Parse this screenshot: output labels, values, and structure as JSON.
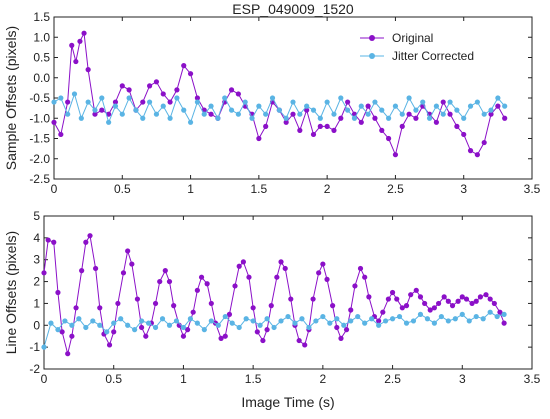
{
  "chart_data": [
    {
      "type": "line",
      "title": "ESP_049009_1520",
      "xlabel": "",
      "ylabel": "Sample Offsets (pixels)",
      "xlim": [
        0,
        3.5
      ],
      "ylim": [
        -2.5,
        1.5
      ],
      "xticks": [
        "0",
        "0.5",
        "1",
        "1.5",
        "2",
        "2.5",
        "3",
        "3.5"
      ],
      "yticks": [
        "-2.5",
        "-2.0",
        "-1.5",
        "-1.0",
        "-0.5",
        "0.0",
        "0.5",
        "1.0",
        "1.5"
      ],
      "legend": "top-right",
      "series": [
        {
          "name": "Original",
          "color": "#8b10c8",
          "x": [
            0.0,
            0.05,
            0.1,
            0.13,
            0.16,
            0.19,
            0.22,
            0.25,
            0.3,
            0.35,
            0.4,
            0.45,
            0.5,
            0.55,
            0.6,
            0.65,
            0.7,
            0.75,
            0.8,
            0.85,
            0.9,
            0.95,
            1.0,
            1.05,
            1.1,
            1.15,
            1.2,
            1.25,
            1.3,
            1.35,
            1.4,
            1.45,
            1.5,
            1.55,
            1.6,
            1.65,
            1.7,
            1.75,
            1.8,
            1.85,
            1.9,
            1.95,
            2.0,
            2.05,
            2.1,
            2.15,
            2.2,
            2.25,
            2.3,
            2.35,
            2.4,
            2.45,
            2.5,
            2.55,
            2.6,
            2.65,
            2.7,
            2.75,
            2.8,
            2.85,
            2.9,
            2.95,
            3.0,
            3.05,
            3.1,
            3.15,
            3.2,
            3.25,
            3.3
          ],
          "y": [
            -1.1,
            -1.4,
            -0.6,
            0.8,
            0.4,
            0.9,
            1.1,
            0.2,
            -0.9,
            -0.8,
            -0.9,
            -0.6,
            -0.2,
            -0.3,
            -0.8,
            -0.6,
            -0.2,
            -0.1,
            -0.4,
            -0.6,
            -0.3,
            0.3,
            0.1,
            -0.5,
            -0.8,
            -0.9,
            -1.0,
            -0.6,
            -0.3,
            -0.4,
            -0.7,
            -0.9,
            -1.5,
            -1.2,
            -0.6,
            -0.8,
            -1.1,
            -0.9,
            -1.3,
            -0.8,
            -1.4,
            -1.2,
            -1.2,
            -1.3,
            -1.0,
            -0.6,
            -0.9,
            -1.1,
            -0.7,
            -1.0,
            -1.3,
            -1.5,
            -1.9,
            -1.2,
            -0.9,
            -1.0,
            -0.7,
            -0.9,
            -1.1,
            -0.6,
            -0.9,
            -1.2,
            -1.4,
            -1.8,
            -1.9,
            -1.6,
            -0.9,
            -0.7,
            -1.0
          ]
        },
        {
          "name": "Jitter Corrected",
          "color": "#5ab4e4",
          "x": [
            0.0,
            0.05,
            0.1,
            0.15,
            0.2,
            0.25,
            0.3,
            0.35,
            0.4,
            0.45,
            0.5,
            0.55,
            0.6,
            0.65,
            0.7,
            0.75,
            0.8,
            0.85,
            0.9,
            0.95,
            1.0,
            1.05,
            1.1,
            1.15,
            1.2,
            1.25,
            1.3,
            1.35,
            1.4,
            1.45,
            1.5,
            1.55,
            1.6,
            1.65,
            1.7,
            1.75,
            1.8,
            1.85,
            1.9,
            1.95,
            2.0,
            2.05,
            2.1,
            2.15,
            2.2,
            2.25,
            2.3,
            2.35,
            2.4,
            2.45,
            2.5,
            2.55,
            2.6,
            2.65,
            2.7,
            2.75,
            2.8,
            2.85,
            2.9,
            2.95,
            3.0,
            3.05,
            3.1,
            3.15,
            3.2,
            3.25,
            3.3
          ],
          "y": [
            -0.6,
            -0.5,
            -0.9,
            -0.4,
            -1.0,
            -0.6,
            -0.8,
            -0.5,
            -1.1,
            -0.7,
            -0.9,
            -0.5,
            -0.8,
            -1.0,
            -0.6,
            -0.9,
            -0.7,
            -1.0,
            -0.5,
            -0.8,
            -1.1,
            -0.6,
            -0.9,
            -0.7,
            -1.0,
            -0.5,
            -0.8,
            -0.9,
            -0.6,
            -1.0,
            -0.7,
            -0.9,
            -0.5,
            -0.8,
            -1.0,
            -0.6,
            -0.9,
            -0.7,
            -0.8,
            -1.0,
            -0.6,
            -0.9,
            -0.5,
            -0.8,
            -1.0,
            -0.7,
            -0.9,
            -0.6,
            -0.8,
            -1.0,
            -0.7,
            -0.9,
            -0.5,
            -0.8,
            -0.6,
            -1.0,
            -0.7,
            -0.9,
            -0.6,
            -0.8,
            -1.0,
            -0.7,
            -0.6,
            -0.9,
            -0.8,
            -0.5,
            -0.7
          ]
        }
      ]
    },
    {
      "type": "line",
      "title": "",
      "xlabel": "Image Time (s)",
      "ylabel": "Line Offsets (pixels)",
      "xlim": [
        0,
        3.5
      ],
      "ylim": [
        -2,
        5
      ],
      "xticks": [
        "0",
        "0.5",
        "1",
        "1.5",
        "2",
        "2.5",
        "3",
        "3.5"
      ],
      "yticks": [
        "-2",
        "-1",
        "0",
        "1",
        "2",
        "3",
        "4",
        "5"
      ],
      "series": [
        {
          "name": "Original",
          "color": "#8b10c8",
          "x": [
            0.0,
            0.03,
            0.07,
            0.1,
            0.13,
            0.17,
            0.2,
            0.23,
            0.27,
            0.3,
            0.33,
            0.37,
            0.4,
            0.43,
            0.47,
            0.5,
            0.53,
            0.57,
            0.6,
            0.63,
            0.67,
            0.7,
            0.73,
            0.77,
            0.8,
            0.83,
            0.87,
            0.9,
            0.93,
            0.97,
            1.0,
            1.03,
            1.07,
            1.1,
            1.13,
            1.17,
            1.2,
            1.23,
            1.27,
            1.3,
            1.33,
            1.37,
            1.4,
            1.43,
            1.47,
            1.5,
            1.53,
            1.57,
            1.6,
            1.63,
            1.67,
            1.7,
            1.73,
            1.77,
            1.8,
            1.83,
            1.87,
            1.9,
            1.93,
            1.97,
            2.0,
            2.03,
            2.07,
            2.1,
            2.13,
            2.17,
            2.2,
            2.23,
            2.27,
            2.3,
            2.33,
            2.37,
            2.4,
            2.43,
            2.47,
            2.5,
            2.53,
            2.57,
            2.6,
            2.63,
            2.67,
            2.7,
            2.73,
            2.77,
            2.8,
            2.83,
            2.87,
            2.9,
            2.93,
            2.97,
            3.0,
            3.03,
            3.07,
            3.1,
            3.13,
            3.17,
            3.2,
            3.23,
            3.27,
            3.3
          ],
          "y": [
            2.4,
            3.9,
            3.8,
            1.5,
            -0.3,
            -1.3,
            -0.5,
            0.8,
            2.5,
            3.8,
            4.1,
            2.6,
            0.8,
            -0.4,
            -0.9,
            -0.3,
            1.0,
            2.4,
            3.4,
            2.8,
            1.2,
            -0.1,
            -0.5,
            0.1,
            1.0,
            2.0,
            2.5,
            2.0,
            0.9,
            0.0,
            -0.5,
            -0.2,
            0.6,
            1.6,
            2.2,
            1.9,
            1.0,
            0.1,
            -0.6,
            -0.5,
            0.5,
            1.8,
            2.7,
            2.9,
            2.2,
            0.8,
            -0.3,
            -0.7,
            -0.2,
            0.9,
            2.2,
            2.9,
            2.6,
            1.2,
            0.0,
            -0.7,
            -0.9,
            -0.2,
            1.2,
            2.4,
            2.8,
            2.1,
            0.9,
            -0.1,
            -0.6,
            -0.2,
            0.7,
            1.8,
            2.6,
            2.2,
            1.3,
            0.4,
            0.2,
            0.6,
            1.2,
            1.5,
            1.2,
            0.8,
            0.9,
            1.4,
            1.6,
            1.3,
            1.0,
            0.7,
            0.8,
            1.0,
            1.3,
            1.1,
            0.9,
            1.1,
            1.3,
            1.2,
            1.0,
            1.1,
            1.3,
            1.4,
            1.2,
            1.0,
            0.6,
            0.1
          ]
        },
        {
          "name": "Jitter Corrected",
          "color": "#5ab4e4",
          "x": [
            0.0,
            0.05,
            0.1,
            0.15,
            0.2,
            0.25,
            0.3,
            0.35,
            0.4,
            0.45,
            0.5,
            0.55,
            0.6,
            0.65,
            0.7,
            0.75,
            0.8,
            0.85,
            0.9,
            0.95,
            1.0,
            1.05,
            1.1,
            1.15,
            1.2,
            1.25,
            1.3,
            1.35,
            1.4,
            1.45,
            1.5,
            1.55,
            1.6,
            1.65,
            1.7,
            1.75,
            1.8,
            1.85,
            1.9,
            1.95,
            2.0,
            2.05,
            2.1,
            2.15,
            2.2,
            2.25,
            2.3,
            2.35,
            2.4,
            2.45,
            2.5,
            2.55,
            2.6,
            2.65,
            2.7,
            2.75,
            2.8,
            2.85,
            2.9,
            2.95,
            3.0,
            3.05,
            3.1,
            3.15,
            3.2,
            3.25,
            3.3
          ],
          "y": [
            -1.0,
            0.1,
            -0.2,
            0.2,
            0.0,
            0.3,
            -0.1,
            0.2,
            0.0,
            -0.3,
            0.1,
            0.3,
            0.0,
            -0.2,
            0.2,
            0.1,
            -0.1,
            0.3,
            0.0,
            0.2,
            -0.1,
            0.3,
            0.1,
            -0.2,
            0.2,
            0.0,
            0.4,
            0.1,
            -0.1,
            0.3,
            0.2,
            0.0,
            0.3,
            -0.1,
            0.2,
            0.4,
            0.1,
            0.3,
            -0.1,
            0.2,
            0.4,
            0.1,
            0.3,
            0.0,
            0.2,
            0.4,
            0.1,
            0.3,
            0.0,
            0.2,
            0.3,
            0.4,
            0.1,
            0.2,
            0.5,
            0.3,
            0.1,
            0.4,
            0.2,
            0.3,
            0.5,
            0.2,
            0.4,
            0.3,
            0.6,
            0.4,
            0.5
          ]
        }
      ]
    }
  ]
}
